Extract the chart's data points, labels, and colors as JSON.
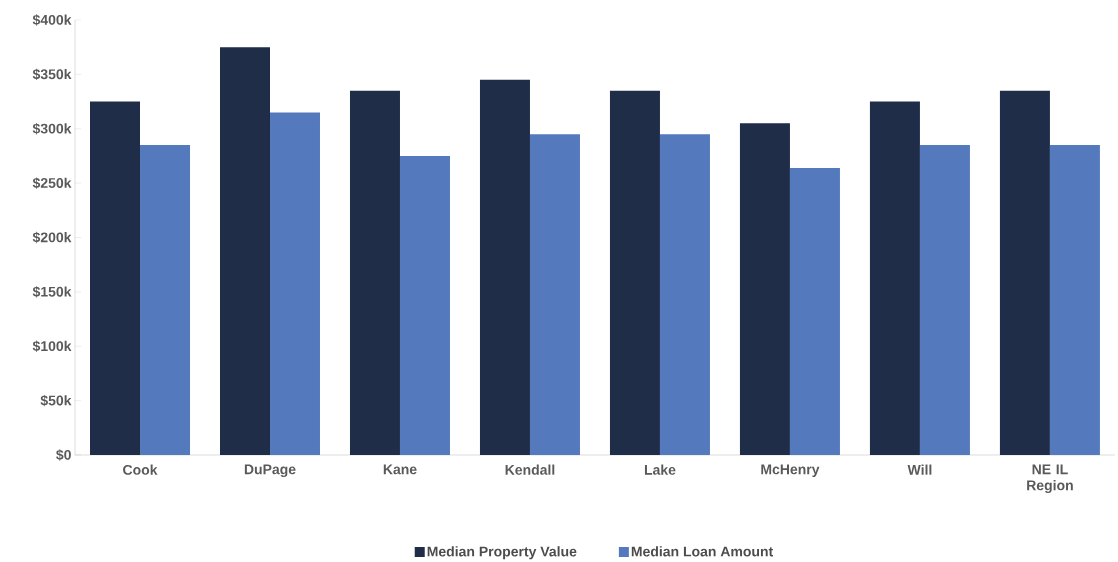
{
  "chart_data": {
    "type": "bar",
    "categories": [
      "Cook",
      "DuPage",
      "Kane",
      "Kendall",
      "Lake",
      "McHenry",
      "Will",
      "NE IL Region"
    ],
    "series": [
      {
        "name": "Median Property Value",
        "color": "#1f2d48",
        "values": [
          325000,
          375000,
          335000,
          345000,
          335000,
          305000,
          325000,
          335000
        ]
      },
      {
        "name": "Median Loan Amount",
        "color": "#5479bd",
        "values": [
          285000,
          315000,
          275000,
          295000,
          295000,
          264000,
          285000,
          285000
        ]
      }
    ],
    "ylim": [
      0,
      400000
    ],
    "yticks": [
      {
        "value": 0,
        "label": "$0"
      },
      {
        "value": 50000,
        "label": "$50k"
      },
      {
        "value": 100000,
        "label": "$100k"
      },
      {
        "value": 150000,
        "label": "$150k"
      },
      {
        "value": 200000,
        "label": "$200k"
      },
      {
        "value": 250000,
        "label": "$250k"
      },
      {
        "value": 300000,
        "label": "$300k"
      },
      {
        "value": 350000,
        "label": "$350k"
      },
      {
        "value": 400000,
        "label": "$400k"
      }
    ],
    "grid": false,
    "legend": "bottom"
  }
}
